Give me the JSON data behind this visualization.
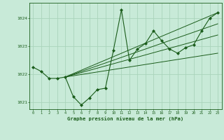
{
  "title": "Graphe pression niveau de la mer (hPa)",
  "background_color": "#c8ead8",
  "grid_color": "#aad4bb",
  "line_color": "#1a5c1a",
  "marker_color": "#1a5c1a",
  "xlim": [
    -0.5,
    23.5
  ],
  "ylim": [
    1020.75,
    1024.55
  ],
  "yticks": [
    1021,
    1022,
    1023,
    1024
  ],
  "xticks": [
    0,
    1,
    2,
    3,
    4,
    5,
    6,
    7,
    8,
    9,
    10,
    11,
    12,
    13,
    14,
    15,
    16,
    17,
    18,
    19,
    20,
    21,
    22,
    23
  ],
  "series_x": [
    0,
    1,
    2,
    3,
    4,
    5,
    6,
    7,
    8,
    9,
    10,
    11,
    12,
    13,
    14,
    15,
    16,
    17,
    18,
    19,
    20,
    21,
    22,
    23
  ],
  "series_y": [
    1022.25,
    1022.1,
    1021.85,
    1021.85,
    1021.9,
    1021.2,
    1020.9,
    1021.15,
    1021.45,
    1021.5,
    1022.85,
    1024.3,
    1022.5,
    1022.9,
    1023.1,
    1023.55,
    1023.2,
    1022.9,
    1022.75,
    1022.95,
    1023.05,
    1023.55,
    1024.0,
    1024.2
  ],
  "extra_lines": [
    {
      "x": [
        4,
        23
      ],
      "y": [
        1021.9,
        1024.2
      ]
    },
    {
      "x": [
        4,
        23
      ],
      "y": [
        1021.9,
        1022.75
      ]
    },
    {
      "x": [
        4,
        23
      ],
      "y": [
        1021.9,
        1023.4
      ]
    },
    {
      "x": [
        4,
        23
      ],
      "y": [
        1021.9,
        1023.8
      ]
    }
  ]
}
